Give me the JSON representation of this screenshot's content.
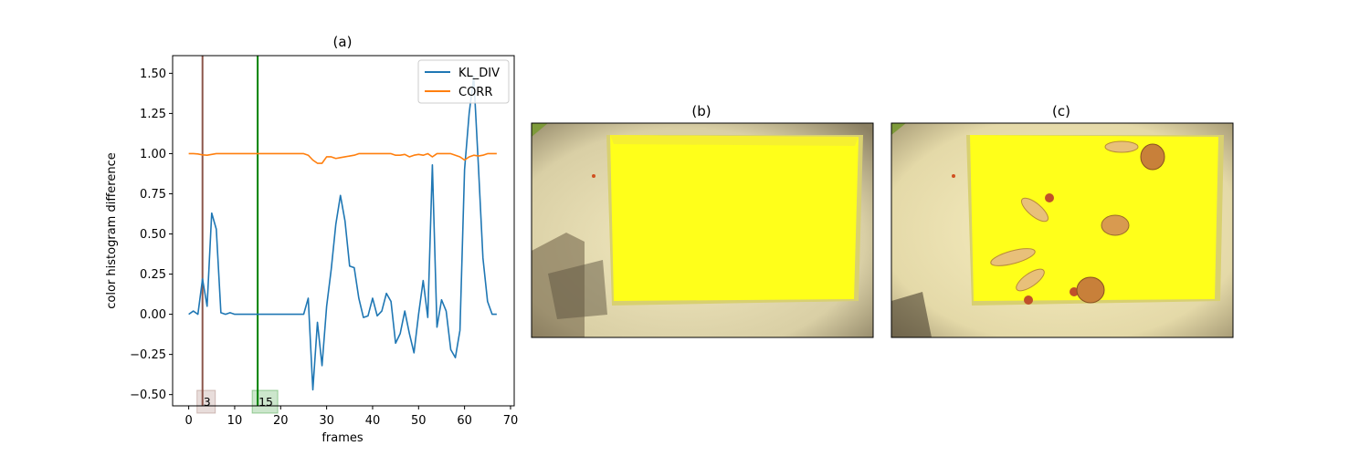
{
  "chart_data": [
    {
      "type": "line",
      "title": "(a)",
      "xlabel": "frames",
      "ylabel": "color histogram difference",
      "xlim": [
        -3.5,
        70.8
      ],
      "ylim": [
        -0.57,
        1.61
      ],
      "xticks": [
        0,
        10,
        20,
        30,
        40,
        50,
        60,
        70
      ],
      "yticks": [
        -0.5,
        -0.25,
        0.0,
        0.25,
        0.5,
        0.75,
        1.0,
        1.25,
        1.5
      ],
      "ytick_labels": [
        "−0.50",
        "−0.25",
        "0.00",
        "0.25",
        "0.50",
        "0.75",
        "1.00",
        "1.25",
        "1.50"
      ],
      "grid": false,
      "legend_position": "upper-right",
      "series": [
        {
          "name": "KL_DIV",
          "color": "#1f77b4",
          "x": [
            0,
            1,
            2,
            3,
            4,
            5,
            6,
            7,
            8,
            9,
            10,
            11,
            12,
            13,
            14,
            15,
            16,
            17,
            18,
            19,
            20,
            21,
            22,
            23,
            24,
            25,
            26,
            27,
            28,
            29,
            30,
            31,
            32,
            33,
            34,
            35,
            36,
            37,
            38,
            39,
            40,
            41,
            42,
            43,
            44,
            45,
            46,
            47,
            48,
            49,
            50,
            51,
            52,
            53,
            54,
            55,
            56,
            57,
            58,
            59,
            60,
            61,
            62,
            63,
            64,
            65,
            66,
            67
          ],
          "values": [
            0.0,
            0.02,
            0.0,
            0.22,
            0.05,
            0.63,
            0.53,
            0.01,
            0.0,
            0.01,
            0.0,
            0.0,
            0.0,
            0.0,
            0.0,
            0.0,
            0.0,
            0.0,
            0.0,
            0.0,
            0.0,
            0.0,
            0.0,
            0.0,
            0.0,
            0.0,
            0.1,
            -0.47,
            -0.05,
            -0.32,
            0.05,
            0.28,
            0.56,
            0.74,
            0.58,
            0.3,
            0.29,
            0.1,
            -0.02,
            -0.01,
            0.1,
            -0.01,
            0.02,
            0.13,
            0.08,
            -0.18,
            -0.12,
            0.02,
            -0.12,
            -0.24,
            0.0,
            0.21,
            -0.02,
            0.93,
            -0.08,
            0.09,
            0.02,
            -0.22,
            -0.27,
            -0.1,
            0.9,
            1.25,
            1.48,
            0.93,
            0.35,
            0.08,
            0.0,
            0.0
          ]
        },
        {
          "name": "CORR",
          "color": "#ff7f0e",
          "x": [
            0,
            1,
            2,
            3,
            4,
            5,
            6,
            7,
            8,
            9,
            10,
            11,
            12,
            13,
            14,
            15,
            16,
            17,
            18,
            19,
            20,
            21,
            22,
            23,
            24,
            25,
            26,
            27,
            28,
            29,
            30,
            31,
            32,
            33,
            34,
            35,
            36,
            37,
            38,
            39,
            40,
            41,
            42,
            43,
            44,
            45,
            46,
            47,
            48,
            49,
            50,
            51,
            52,
            53,
            54,
            55,
            56,
            57,
            58,
            59,
            60,
            61,
            62,
            63,
            64,
            65,
            66,
            67
          ],
          "values": [
            1.0,
            1.0,
            0.998,
            0.992,
            0.99,
            0.995,
            1.0,
            1.0,
            1.0,
            1.0,
            1.0,
            1.0,
            1.0,
            1.0,
            1.0,
            1.0,
            1.0,
            1.0,
            1.0,
            1.0,
            1.0,
            1.0,
            1.0,
            1.0,
            1.0,
            1.0,
            0.99,
            0.96,
            0.94,
            0.94,
            0.98,
            0.98,
            0.97,
            0.975,
            0.98,
            0.985,
            0.99,
            1.0,
            1.0,
            1.0,
            1.0,
            1.0,
            1.0,
            1.0,
            1.0,
            0.99,
            0.99,
            0.995,
            0.98,
            0.99,
            0.995,
            0.99,
            1.0,
            0.98,
            1.0,
            1.0,
            1.0,
            1.0,
            0.99,
            0.98,
            0.96,
            0.98,
            0.99,
            0.985,
            0.99,
            1.0,
            1.0,
            1.0
          ]
        }
      ],
      "vlines": [
        {
          "x": 3,
          "label": "3",
          "color": "#8c564b"
        },
        {
          "x": 15,
          "label": "15",
          "color": "#008000"
        }
      ]
    }
  ],
  "images": [
    {
      "title": "(b)",
      "description": "tray-empty"
    },
    {
      "title": "(c)",
      "description": "tray-with-nuts"
    }
  ]
}
